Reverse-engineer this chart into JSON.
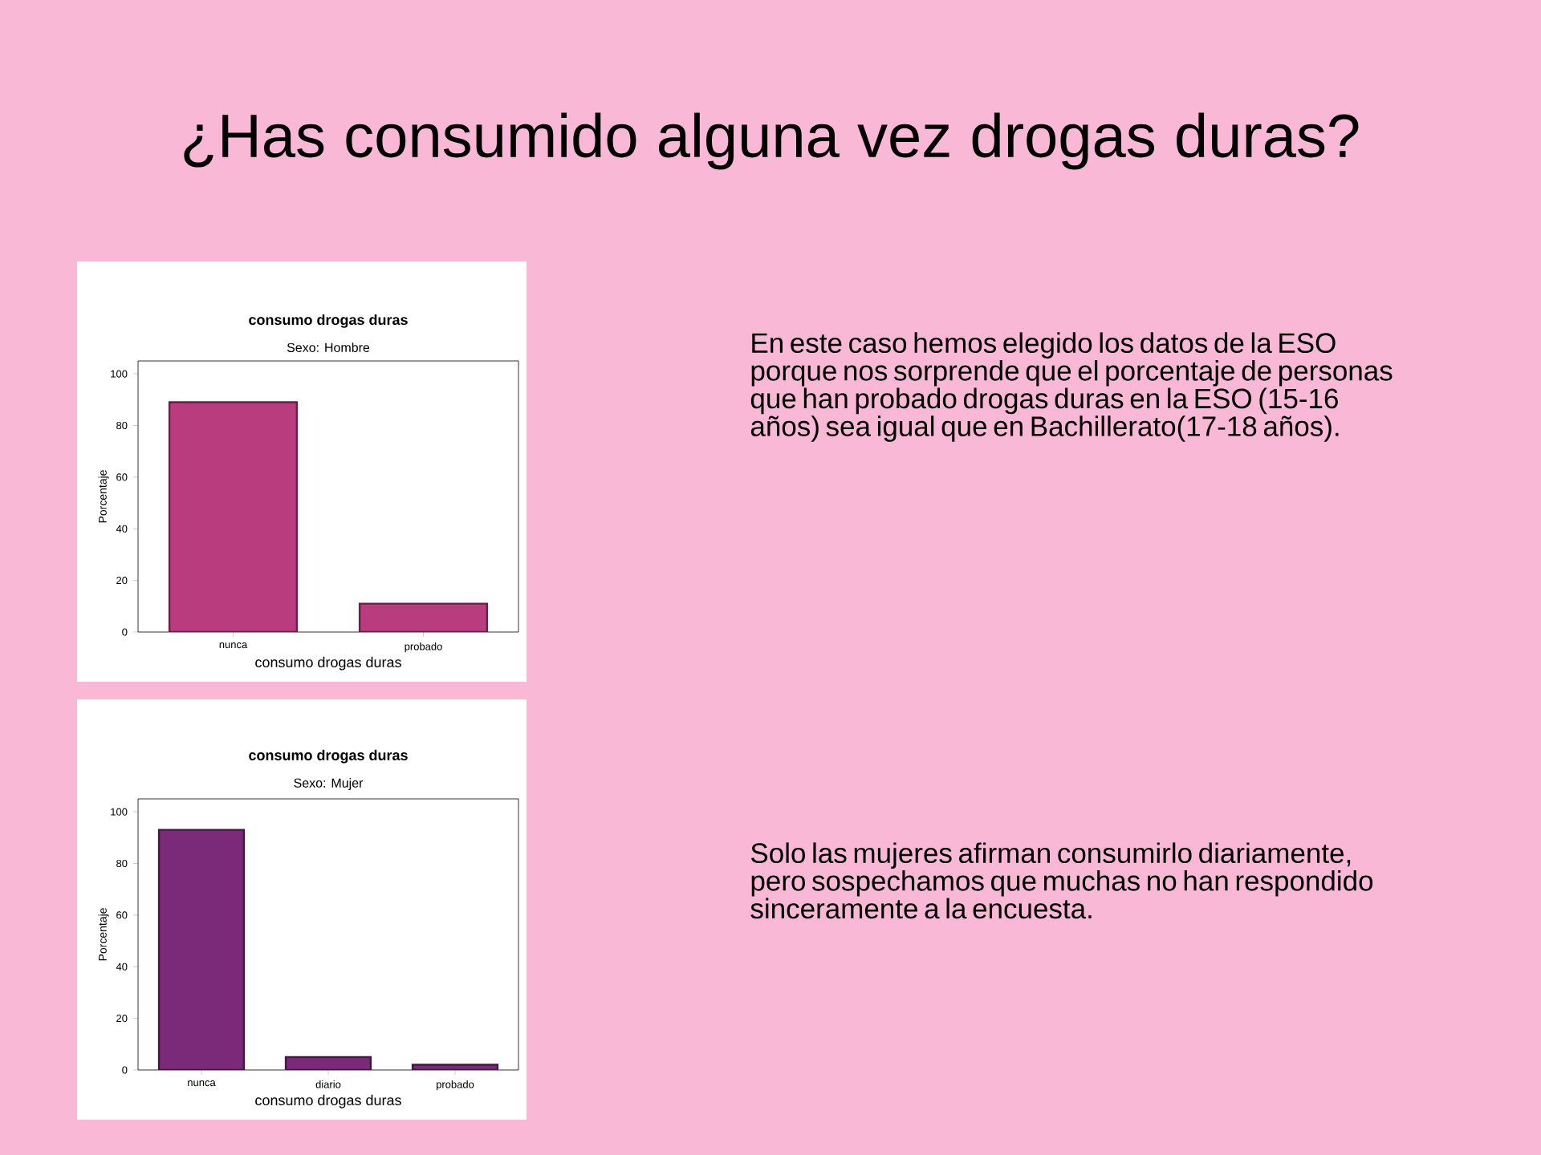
{
  "chart_data": [
    {
      "type": "bar",
      "title": "consumo drogas duras",
      "subtitle": "Sexo: Hombre",
      "xlabel": "consumo drogas duras",
      "ylabel": "Porcentaje",
      "categories": [
        "nunca",
        "probado"
      ],
      "values": [
        89,
        11
      ],
      "color": "#b83c7e",
      "ylim": [
        0,
        105
      ],
      "yticks": [
        0,
        20,
        40,
        60,
        80,
        100
      ]
    },
    {
      "type": "bar",
      "title": "consumo drogas duras",
      "subtitle": "Sexo: Mujer",
      "xlabel": "consumo drogas duras",
      "ylabel": "Porcentaje",
      "categories": [
        "nunca",
        "diario",
        "probado"
      ],
      "values": [
        93,
        5,
        2
      ],
      "color": "#7b2a7a",
      "ylim": [
        0,
        105
      ],
      "yticks": [
        0,
        20,
        40,
        60,
        80,
        100
      ]
    },
    {
      "type": "other",
      "title": "¿Has consumido alguna vez drogas duras?",
      "annotations": [
        "En este caso hemos elegido los datos de la ESO porque nos sorprende que el porcentaje de personas que han probado drogas duras en la ESO (15-16 años) sea igual que en Bachillerato(17-18 años).",
        "Solo las mujeres afirman consumirlo diariamente, pero sospechamos que muchas no han respondido sinceramente a la encuesta."
      ]
    }
  ]
}
